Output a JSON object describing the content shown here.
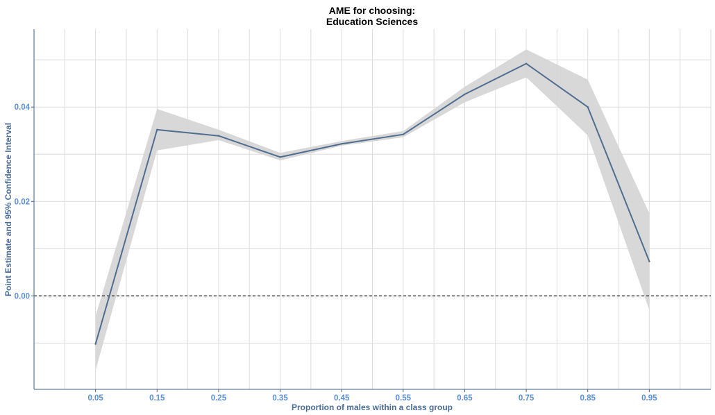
{
  "chart_data": {
    "type": "line",
    "title": [
      "AME for choosing:",
      "Education Sciences"
    ],
    "xlabel": "Proportion of males within a class group",
    "ylabel": "Point Estimate and 95% Confidence Interval",
    "x": [
      0.05,
      0.15,
      0.25,
      0.35,
      0.45,
      0.55,
      0.65,
      0.75,
      0.85,
      0.95
    ],
    "x_tick_labels": [
      "0.05",
      "0.15",
      "0.25",
      "0.35",
      "0.45",
      "0.55",
      "0.65",
      "0.75",
      "0.85",
      "0.95"
    ],
    "xlim": [
      -0.05,
      1.05
    ],
    "y_ticks": [
      0.0,
      0.02,
      0.04
    ],
    "y_tick_labels": [
      "0.00",
      "0.02",
      "0.04"
    ],
    "ylim": [
      -0.0198,
      0.0565
    ],
    "series": [
      {
        "name": "Point Estimate",
        "values": [
          -0.0102,
          0.0352,
          0.0339,
          0.0294,
          0.0322,
          0.0342,
          0.0427,
          0.0492,
          0.04,
          0.0073
        ],
        "color": "#4e6d8f"
      }
    ],
    "confidence_interval": {
      "label": "95% Confidence Interval",
      "lower": [
        -0.0158,
        0.0308,
        0.033,
        0.0287,
        0.0318,
        0.0336,
        0.041,
        0.0463,
        0.034,
        -0.003
      ],
      "upper": [
        -0.0043,
        0.0396,
        0.0352,
        0.0303,
        0.0328,
        0.0349,
        0.0443,
        0.0522,
        0.0458,
        0.0175
      ],
      "fill_color": "#d4d4d4"
    },
    "reference_line": {
      "y": 0.0,
      "style": "dashed",
      "color": "#000000"
    },
    "grid": true,
    "legend": "none",
    "colors": {
      "axis_text": "#5b8fd6",
      "axis_title": "#4a6d96",
      "axis_line": "#3f5f7f",
      "grid": "#dcdcdc"
    }
  }
}
